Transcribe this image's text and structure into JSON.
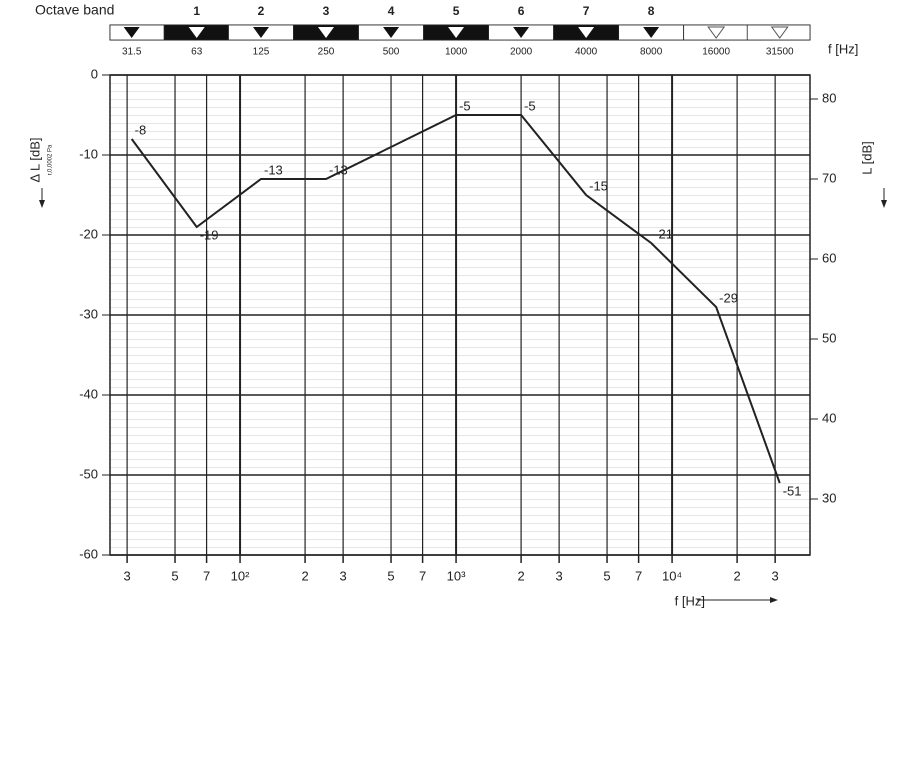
{
  "chart_data": {
    "type": "line",
    "log_x": true,
    "grid": true,
    "band_title": "Octave band",
    "band_numbers": [
      "1",
      "2",
      "3",
      "4",
      "5",
      "6",
      "7",
      "8"
    ],
    "band_frequencies": [
      "31.5",
      "63",
      "125",
      "250",
      "500",
      "1000",
      "2000",
      "4000",
      "8000",
      "16000",
      "31500"
    ],
    "band_unit": "f [Hz]",
    "xlabel": "f [Hz]",
    "ylabel": "Δ L [dB]",
    "ylabel_sub": "r,0,0002 Pa",
    "y2label": "L [dB]",
    "x": [
      31.5,
      63,
      125,
      250,
      1000,
      2000,
      4000,
      8000,
      16000,
      31500
    ],
    "series": [
      {
        "name": "ΔL",
        "color": "#222222",
        "values": [
          -8,
          -19,
          -13,
          -13,
          -5,
          -5,
          -15,
          -21,
          -29,
          -51
        ]
      }
    ],
    "xlim": [
      25,
      43500
    ],
    "xticks": [
      {
        "value": 30,
        "label": "3"
      },
      {
        "value": 50,
        "label": "5"
      },
      {
        "value": 70,
        "label": "7"
      },
      {
        "value": 100,
        "label": "10²"
      },
      {
        "value": 200,
        "label": "2"
      },
      {
        "value": 300,
        "label": "3"
      },
      {
        "value": 500,
        "label": "5"
      },
      {
        "value": 700,
        "label": "7"
      },
      {
        "value": 1000,
        "label": "10³"
      },
      {
        "value": 2000,
        "label": "2"
      },
      {
        "value": 3000,
        "label": "3"
      },
      {
        "value": 5000,
        "label": "5"
      },
      {
        "value": 7000,
        "label": "7"
      },
      {
        "value": 10000,
        "label": "10⁴"
      },
      {
        "value": 20000,
        "label": "2"
      },
      {
        "value": 30000,
        "label": "3"
      }
    ],
    "ylim": [
      -60,
      0
    ],
    "yticks": [
      0,
      -10,
      -20,
      -30,
      -40,
      -50,
      -60
    ],
    "y2lim": [
      23,
      83
    ],
    "y2ticks": [
      30,
      40,
      50,
      60,
      70,
      80
    ]
  }
}
